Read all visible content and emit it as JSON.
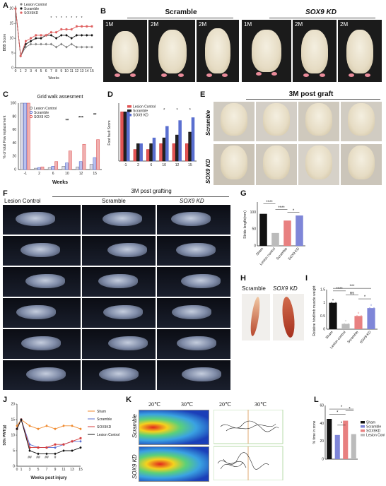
{
  "panels": {
    "A": "A",
    "B": "B",
    "C": "C",
    "D": "D",
    "E": "E",
    "F": "F",
    "G": "G",
    "H": "H",
    "I": "I",
    "J": "J",
    "K": "K",
    "L": "L"
  },
  "panel_b": {
    "scramble": "Scramble",
    "sox9kd": "SOX9 KD",
    "months": [
      "1M",
      "2M",
      "2M",
      "1M",
      "2M",
      "2M"
    ]
  },
  "panel_e": {
    "header": "3M post graft",
    "row1": "Scramble",
    "row2": "SOX9 KD"
  },
  "panel_f": {
    "header": "3M post grafting",
    "cols": [
      "Lesion Control",
      "Scramble",
      "SOX9 KD"
    ]
  },
  "panel_h": {
    "scramble": "Scramble",
    "sox9kd": "SOX9 KD"
  },
  "panel_k": {
    "row1": "Scramble",
    "row2": "SOX9 KD",
    "temps": [
      "20℃",
      "30℃",
      "20℃",
      "30℃"
    ]
  },
  "colors": {
    "lesion": "#808080",
    "scramble": "#111111",
    "sox9": "#e06060",
    "blue": "#5a6fd0",
    "sham": "#f08a2e"
  },
  "chart_data": [
    {
      "id": "A",
      "type": "line",
      "ylabel": "BBB Score",
      "xlabel": "Weeks",
      "x": [
        0,
        1,
        2,
        3,
        4,
        5,
        6,
        7,
        8,
        9,
        10,
        11,
        12,
        13,
        14,
        15
      ],
      "ylim": [
        0,
        21
      ],
      "yticks": [
        0,
        5,
        10,
        15,
        20
      ],
      "series": [
        {
          "name": "Lesion Control",
          "values": [
            20,
            4,
            7,
            8,
            8,
            8,
            8,
            8,
            7,
            8,
            7,
            8,
            7,
            7,
            7,
            7
          ]
        },
        {
          "name": "Scramble",
          "values": [
            20,
            4,
            8,
            9,
            10,
            10,
            11,
            11,
            10,
            11,
            11,
            10,
            11,
            11,
            11,
            11
          ]
        },
        {
          "name": "SOX9KD",
          "values": [
            20,
            4,
            9,
            10,
            11,
            11,
            11,
            12,
            12,
            13,
            13,
            13,
            14,
            14,
            14,
            14
          ]
        }
      ],
      "annotations": [
        "*",
        "*",
        "*",
        "*",
        "*",
        "*",
        "*"
      ]
    },
    {
      "id": "C",
      "type": "bar",
      "title": "Grid walk assesment",
      "ylabel": "% of total Paw replacement",
      "xlabel": "Weeks",
      "categories": [
        "-1",
        "2",
        "6",
        "10",
        "12",
        "15"
      ],
      "ylim": [
        0,
        100
      ],
      "yticks": [
        0,
        20,
        40,
        60,
        80,
        100
      ],
      "series": [
        {
          "name": "Lesion Control",
          "values": [
            100,
            2,
            3,
            5,
            4,
            8
          ]
        },
        {
          "name": "Scramble",
          "values": [
            100,
            3,
            5,
            10,
            12,
            18
          ]
        },
        {
          "name": "SOX9 KD",
          "values": [
            100,
            4,
            12,
            28,
            38,
            45
          ]
        }
      ],
      "annotations": [
        "**",
        "***",
        "**"
      ]
    },
    {
      "id": "D",
      "type": "bar",
      "ylabel": "Foot fault Score",
      "categories": [
        "-1",
        "2",
        "6",
        "10",
        "12",
        "15"
      ],
      "ylim": [
        0,
        10
      ],
      "series": [
        {
          "name": "Lesion Control",
          "values": [
            8.5,
            2,
            2,
            3,
            3,
            3
          ]
        },
        {
          "name": "Scramble",
          "values": [
            8.5,
            3,
            3,
            4,
            4.5,
            5
          ]
        },
        {
          "name": "SOX9 KD",
          "values": [
            8.5,
            3,
            4,
            6,
            7,
            7.5
          ]
        }
      ],
      "annotations": [
        "*",
        "*",
        "*"
      ]
    },
    {
      "id": "G",
      "type": "bar",
      "ylabel": "Stride length(mm)",
      "categories": [
        "Sham",
        "Lesion control",
        "Scramble",
        "SOX9 KD"
      ],
      "values": [
        95,
        38,
        75,
        90
      ],
      "colors": [
        "#111111",
        "#bbbbbb",
        "#e88080",
        "#7f86d8"
      ],
      "ylim": [
        0,
        130
      ],
      "yticks": [
        0,
        50,
        100
      ],
      "annotations": [
        "****",
        "****",
        "*"
      ]
    },
    {
      "id": "I",
      "type": "bar",
      "ylabel": "Relative hindlimb muscle weight",
      "categories": [
        "Sham",
        "Lesion control",
        "Scramble",
        "SOX9 KD"
      ],
      "values": [
        1.0,
        0.2,
        0.5,
        0.8
      ],
      "colors": [
        "#111111",
        "#bbbbbb",
        "#e88080",
        "#7f86d8"
      ],
      "ylim": [
        0,
        1.5
      ],
      "yticks": [
        0,
        0.5,
        1.0,
        1.5
      ],
      "annotations": [
        "****",
        "ns",
        "***",
        "*"
      ]
    },
    {
      "id": "J",
      "type": "line",
      "ylabel": "50% PWT(g)",
      "xlabel": "Weeks post injury",
      "x": [
        0,
        1,
        3,
        5,
        7,
        9,
        11,
        13,
        15
      ],
      "xticks": [
        "0",
        "1",
        "3",
        "5",
        "7",
        "9",
        "11",
        "13",
        "15"
      ],
      "ylim": [
        0,
        20
      ],
      "yticks": [
        0,
        5,
        10,
        15,
        20
      ],
      "series": [
        {
          "name": "Sham",
          "values": [
            13,
            15,
            13,
            12,
            13,
            12,
            13,
            13,
            12
          ]
        },
        {
          "name": "Scramble",
          "values": [
            12,
            15,
            7,
            6,
            6,
            6,
            7,
            8,
            8
          ]
        },
        {
          "name": "SOX9KD",
          "values": [
            12,
            15,
            6,
            6,
            6,
            7,
            7,
            8,
            9
          ]
        },
        {
          "name": "Lesion Control",
          "values": [
            12,
            15,
            5,
            4,
            4,
            4,
            5,
            5,
            6
          ]
        }
      ],
      "annotations": [
        "##",
        "##",
        "##",
        "#"
      ]
    },
    {
      "id": "L",
      "type": "bar",
      "ylabel": "% time in zone",
      "categories": [
        "Sham",
        "Scramble",
        "SOX9KD",
        "Lesion Control"
      ],
      "values": [
        45,
        27,
        43,
        28
      ],
      "colors": [
        "#111111",
        "#7f86d8",
        "#e88080",
        "#bbbbbb"
      ],
      "ylim": [
        0,
        60
      ],
      "yticks": [
        0,
        20,
        40,
        60
      ],
      "annotations": [
        "*",
        "*",
        "*",
        "*"
      ]
    }
  ]
}
